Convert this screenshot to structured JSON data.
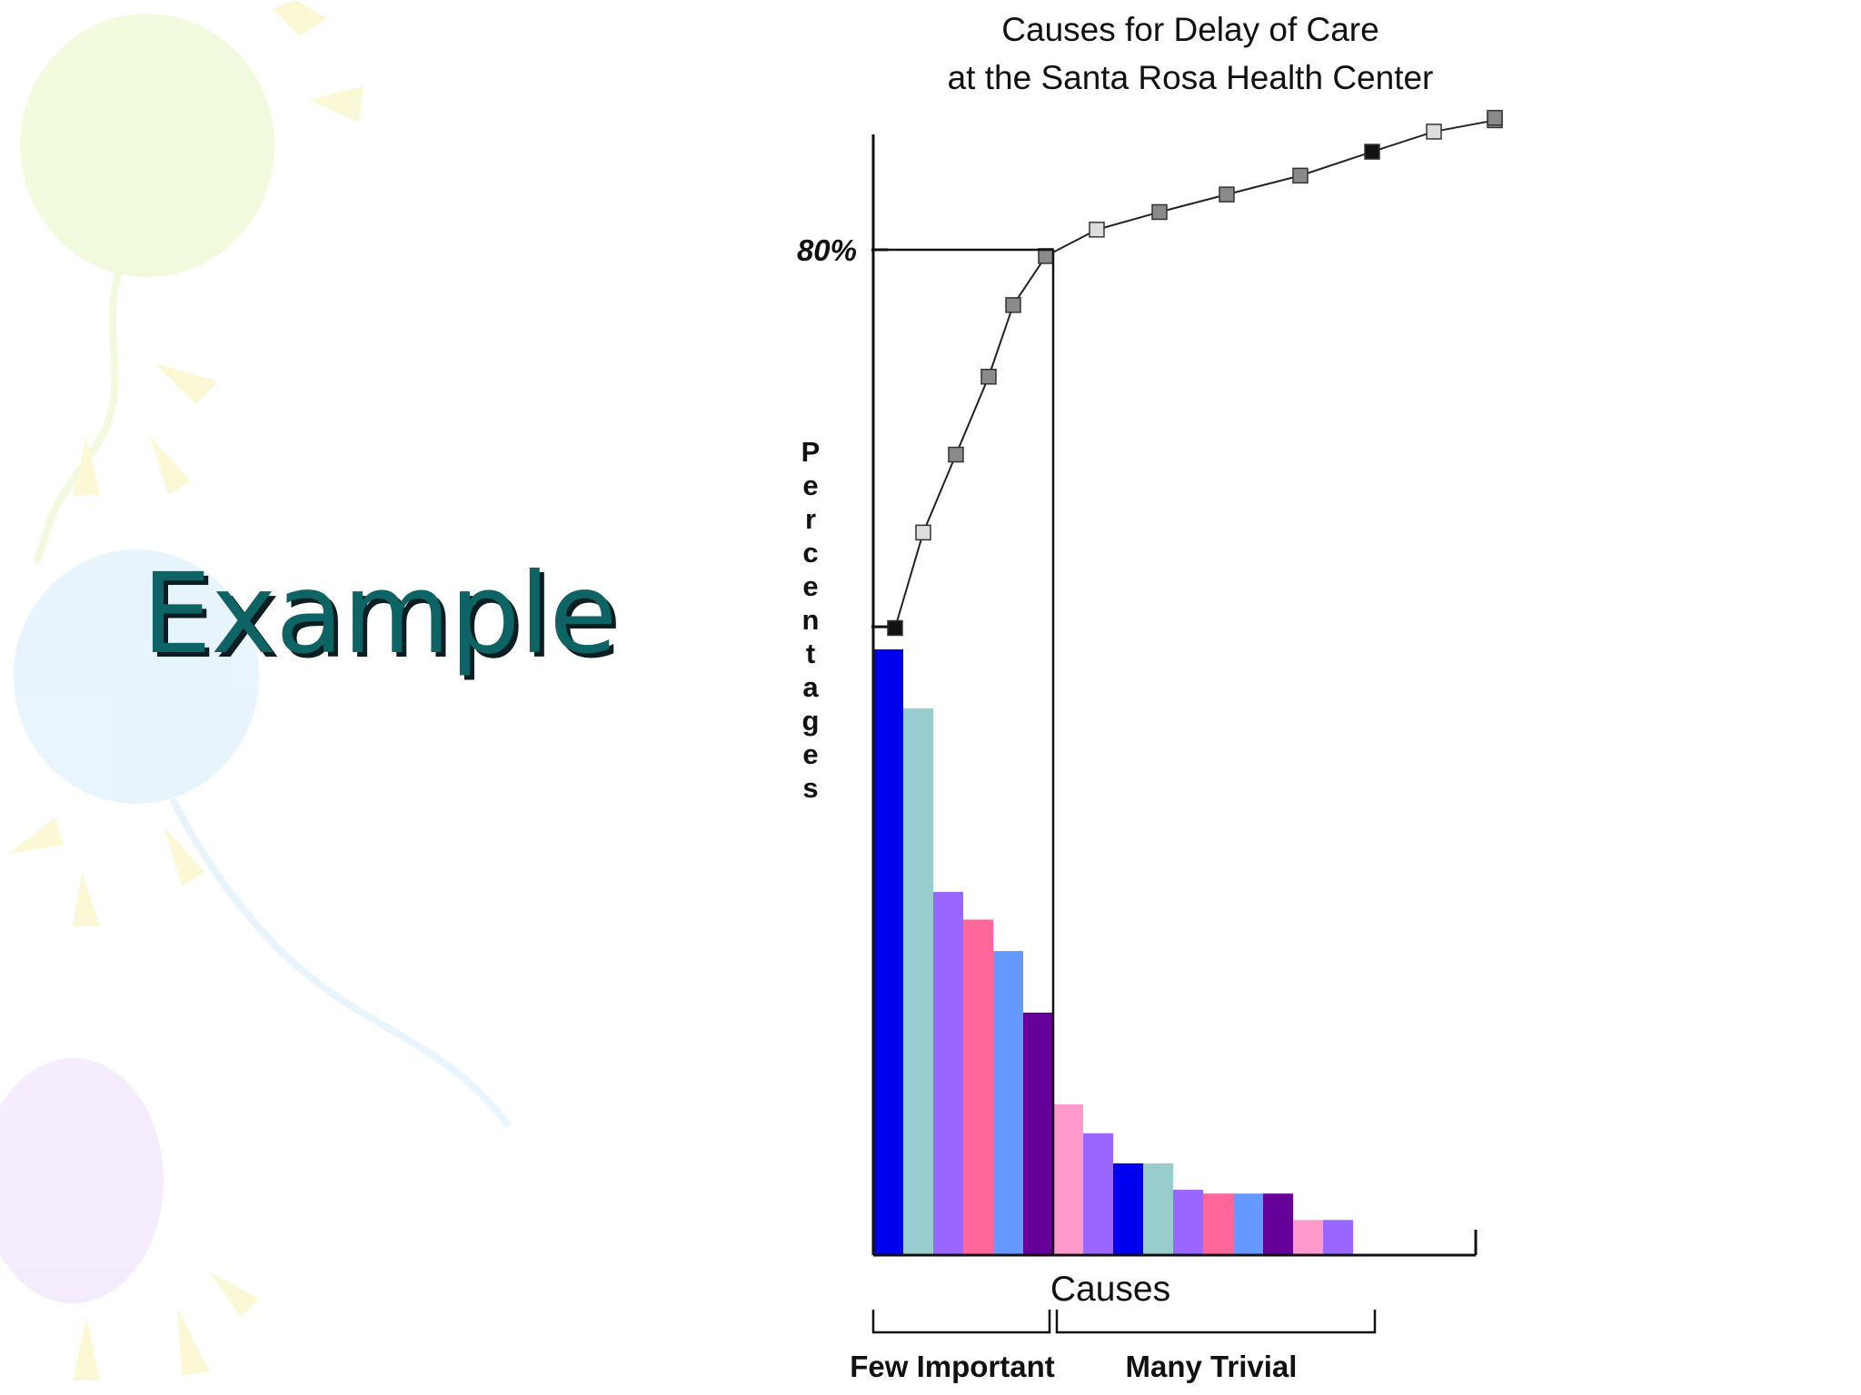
{
  "slide": {
    "title": "Example"
  },
  "chart_data": {
    "type": "bar",
    "title": "Causes for Delay of Care",
    "subtitle": "at the Santa Rosa Health Center",
    "xlabel": "Causes",
    "ylabel": "Percentages",
    "ylim": [
      0,
      100
    ],
    "y_ticks": [
      {
        "value": 50,
        "label": ""
      },
      {
        "value": 80,
        "label": "80%"
      }
    ],
    "categories": [
      "",
      "",
      "",
      "",
      "",
      "",
      "",
      "",
      "",
      "",
      "",
      "",
      "",
      "",
      "",
      ""
    ],
    "series": [
      {
        "kind": "bar",
        "values": [
          48.2,
          43.5,
          28.9,
          26.7,
          24.2,
          19.3,
          12.0,
          9.7,
          7.3,
          7.3,
          5.2,
          4.9,
          4.9,
          4.9,
          2.8,
          2.8
        ],
        "colors": [
          "#0000f0",
          "#99cccc",
          "#9966ff",
          "#ff6699",
          "#6699ff",
          "#660099",
          "#ff99cc",
          "#9966ff",
          "#0000f0",
          "#99cccc",
          "#9966ff",
          "#ff6699",
          "#6699ff",
          "#660099",
          "#ff99cc",
          "#9966ff"
        ]
      },
      {
        "kind": "line",
        "values": [
          49.9,
          57.5,
          63.7,
          69.9,
          75.6,
          79.5,
          81.6,
          83.0,
          84.4,
          85.9,
          87.8,
          87.8,
          89.4,
          89.4,
          90.3,
          90.5
        ],
        "marker_styles": [
          "dark",
          "light",
          "mid",
          "mid",
          "mid",
          "mid",
          "light",
          "mid",
          "mid",
          "mid",
          "dark",
          "dark",
          "light",
          "light",
          "mid",
          "mid"
        ]
      }
    ],
    "cutoff": {
      "y": 80,
      "after_category_index": 5
    },
    "groups": [
      {
        "label": "Few Important"
      },
      {
        "label": "Many Trivial"
      }
    ],
    "colors": {
      "axis": "#111111",
      "line": "#222222",
      "marker_dark": "#111111",
      "marker_mid": "#8a8a8a",
      "marker_light": "#dddddd"
    },
    "grid": false,
    "legend": "none"
  }
}
